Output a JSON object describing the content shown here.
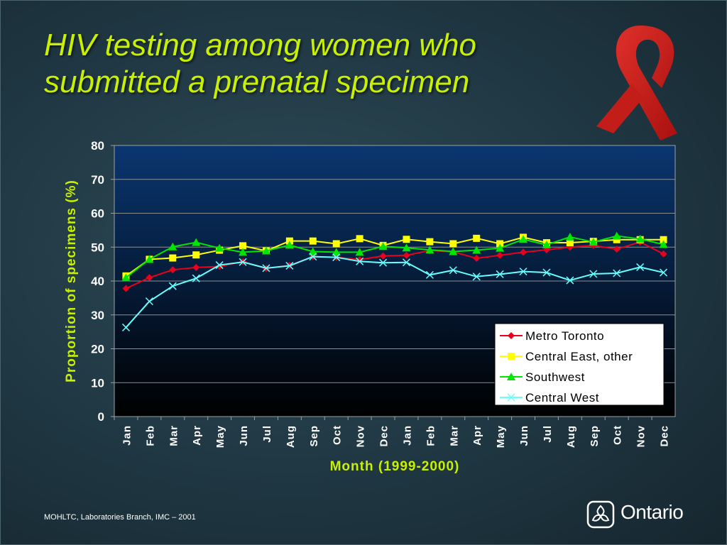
{
  "slide": {
    "title_line1": "HIV testing among women who",
    "title_line2": "submitted a prenatal specimen",
    "footer": "MOHLTC, Laboratories Branch, IMC – 2001",
    "logo_text": "Ontario"
  },
  "chart_data": {
    "type": "line",
    "xlabel": "Month (1999-2000)",
    "ylabel": "Proportion of specimens (%)",
    "ylim": [
      0,
      80
    ],
    "yticks": [
      0,
      10,
      20,
      30,
      40,
      50,
      60,
      70,
      80
    ],
    "grid": true,
    "legend_position": "lower-right",
    "categories": [
      "Jan",
      "Feb",
      "Mar",
      "Apr",
      "May",
      "Jun",
      "Jul",
      "Aug",
      "Sep",
      "Oct",
      "Nov",
      "Dec",
      "Jan",
      "Feb",
      "Mar",
      "Apr",
      "May",
      "Jun",
      "Jul",
      "Aug",
      "Sep",
      "Oct",
      "Nov",
      "Dec"
    ],
    "series": [
      {
        "name": "Metro Toronto",
        "color": "#e8001c",
        "marker": "diamond",
        "values": [
          37.8,
          41.0,
          43.3,
          44.0,
          44.3,
          45.7,
          43.7,
          44.6,
          47.2,
          47.0,
          46.3,
          47.4,
          47.6,
          49.0,
          48.6,
          46.7,
          47.6,
          48.5,
          49.2,
          50.0,
          50.5,
          49.4,
          51.5,
          48.0
        ]
      },
      {
        "name": "Central East, other",
        "color": "#ffff00",
        "marker": "square",
        "values": [
          41.5,
          46.4,
          46.8,
          47.7,
          49.1,
          50.4,
          48.9,
          51.8,
          51.8,
          51.0,
          52.5,
          50.5,
          52.3,
          51.6,
          51.0,
          52.6,
          51.0,
          52.9,
          51.3,
          51.3,
          51.7,
          52.2,
          52.2,
          52.2
        ]
      },
      {
        "name": "Southwest",
        "color": "#00e600",
        "marker": "triangle",
        "values": [
          41.0,
          46.4,
          50.1,
          51.4,
          49.7,
          48.5,
          48.9,
          50.6,
          48.7,
          48.5,
          48.5,
          50.2,
          49.8,
          49.2,
          48.7,
          49.1,
          49.7,
          52.3,
          50.7,
          53.0,
          51.5,
          53.3,
          52.4,
          50.8
        ]
      },
      {
        "name": "Central West",
        "color": "#66ffff",
        "marker": "x",
        "values": [
          26.3,
          34.0,
          38.5,
          40.8,
          44.7,
          45.6,
          43.8,
          44.5,
          47.2,
          47.0,
          45.8,
          45.4,
          45.5,
          41.8,
          43.2,
          41.3,
          42.0,
          42.8,
          42.5,
          40.2,
          42.1,
          42.3,
          44.1,
          42.5
        ]
      }
    ]
  }
}
